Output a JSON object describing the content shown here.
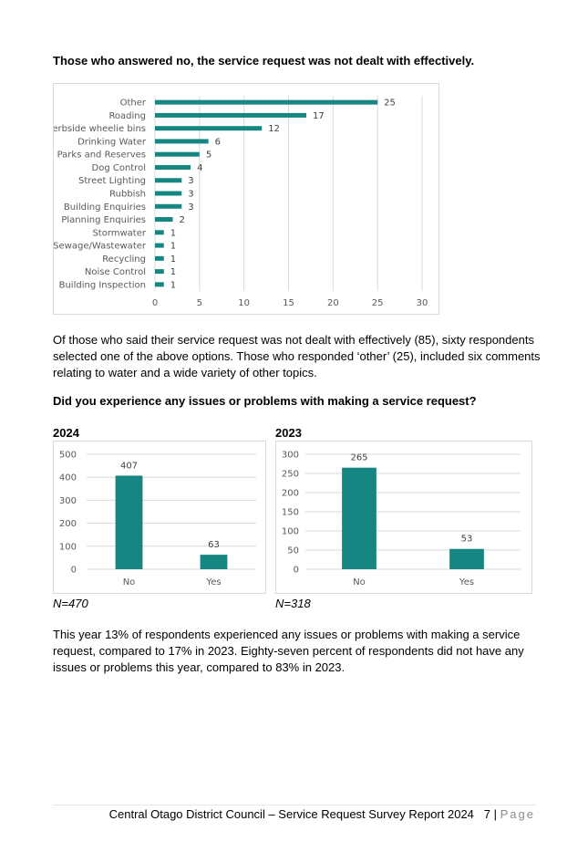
{
  "heading1": "Those who answered no, the service request was not dealt with effectively.",
  "paragraph1": "Of those who said their service request was not dealt with effectively (85), sixty respondents selected one of the above options.  Those who responded ‘other’ (25), included six comments relating to water and a wide variety of other topics.",
  "heading2": "Did you experience any issues or problems with making a service request?",
  "year_2024": "2024",
  "year_2023": "2023",
  "n_2024": "N=470",
  "n_2023": "N=318",
  "paragraph2": "This year 13% of respondents experienced any issues or problems with making a service request, compared to 17% in 2023.  Eighty-seven percent of respondents did not have any issues or problems this year, compared to 83% in 2023.",
  "footer": {
    "text": "Central Otago District Council – Service Request Survey Report 2024",
    "page_number": "7",
    "separator": "|",
    "page_word": "Page"
  },
  "colors": {
    "bar": "#168683",
    "grid": "#d9d9d9",
    "axis_text": "#595959"
  },
  "chart_data": [
    {
      "type": "bar",
      "orientation": "horizontal",
      "categories": [
        "Other",
        "Roading",
        "Kerbside wheelie bins",
        "Drinking Water",
        "Parks and Reserves",
        "Dog Control",
        "Street Lighting",
        "Rubbish",
        "Building Enquiries",
        "Planning Enquiries",
        "Stormwater",
        "Sewage/Wastewater",
        "Recycling",
        "Noise Control",
        "Building Inspection"
      ],
      "values": [
        25,
        17,
        12,
        6,
        5,
        4,
        3,
        3,
        3,
        2,
        1,
        1,
        1,
        1,
        1
      ],
      "xlim": [
        0,
        30
      ],
      "ticks": [
        0,
        5,
        10,
        15,
        20,
        25,
        30
      ],
      "grid": true,
      "data_labels": true
    },
    {
      "type": "bar",
      "categories": [
        "No",
        "Yes"
      ],
      "values": [
        407,
        63
      ],
      "ylim": [
        0,
        500
      ],
      "ticks": [
        0,
        100,
        200,
        300,
        400,
        500
      ],
      "grid": true,
      "data_labels": true
    },
    {
      "type": "bar",
      "categories": [
        "No",
        "Yes"
      ],
      "values": [
        265,
        53
      ],
      "ylim": [
        0,
        300
      ],
      "ticks": [
        0,
        50,
        100,
        150,
        200,
        250,
        300
      ],
      "grid": true,
      "data_labels": true
    }
  ]
}
